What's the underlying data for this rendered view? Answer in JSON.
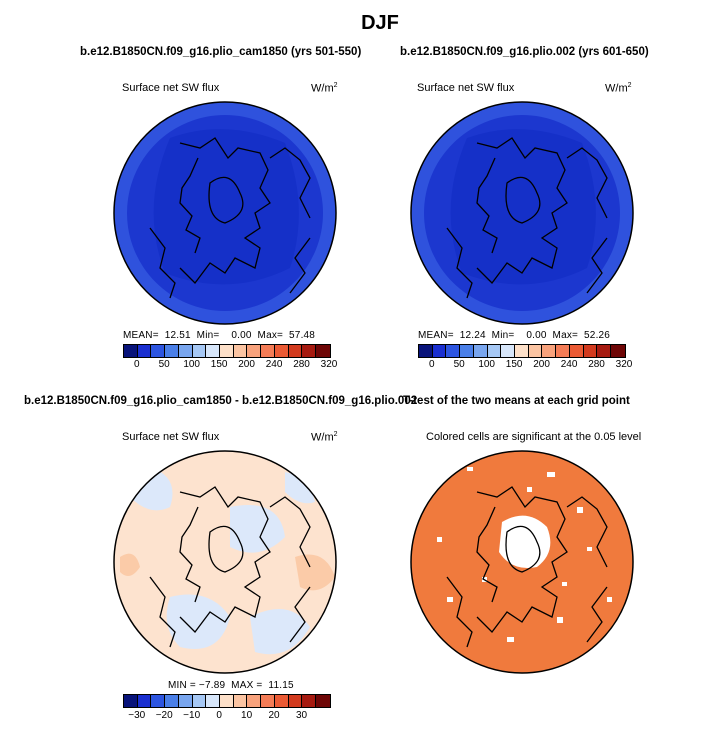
{
  "figure_title": "DJF",
  "panels": [
    {
      "title": "b.e12.B1850CN.f09_g16.plio_cam1850 (yrs 501-550)",
      "left_label": "Surface net SW flux",
      "units": "W/m",
      "units_exp": "2",
      "stats": "MEAN=  12.51  Min=    0.00  Max=  57.48",
      "colorbar": {
        "colors": [
          "#08137a",
          "#1a2fd0",
          "#2d55e0",
          "#4a7fe8",
          "#79a6ef",
          "#a6c8f5",
          "#d7e6fa",
          "#fde0c9",
          "#fbc4a2",
          "#f8a27c",
          "#f47c56",
          "#eb5a34",
          "#d23a1e",
          "#a61a10",
          "#6e0606"
        ],
        "tick_labels": [
          "0",
          "50",
          "100",
          "150",
          "200",
          "240",
          "280",
          "320"
        ]
      }
    },
    {
      "title": "b.e12.B1850CN.f09_g16.plio.002 (yrs 601-650)",
      "left_label": "Surface net SW flux",
      "units": "W/m",
      "units_exp": "2",
      "stats": "MEAN=  12.24  Min=    0.00  Max=  52.26",
      "colorbar": {
        "colors": [
          "#08137a",
          "#1a2fd0",
          "#2d55e0",
          "#4a7fe8",
          "#79a6ef",
          "#a6c8f5",
          "#d7e6fa",
          "#fde0c9",
          "#fbc4a2",
          "#f8a27c",
          "#f47c56",
          "#eb5a34",
          "#d23a1e",
          "#a61a10",
          "#6e0606"
        ],
        "tick_labels": [
          "0",
          "50",
          "100",
          "150",
          "200",
          "240",
          "280",
          "320"
        ]
      }
    },
    {
      "title": "b.e12.B1850CN.f09_g16.plio_cam1850 - b.e12.B1850CN.f09_g16.plio.002",
      "left_label": "Surface net SW flux",
      "units": "W/m",
      "units_exp": "2",
      "stats": "MIN = −7.89  MAX =  11.15",
      "colorbar": {
        "colors": [
          "#08137a",
          "#1a2fd0",
          "#2d55e0",
          "#4a7fe8",
          "#79a6ef",
          "#a6c8f5",
          "#d7e6fa",
          "#fde0c9",
          "#fbc4a2",
          "#f8a27c",
          "#f47c56",
          "#eb5a34",
          "#d23a1e",
          "#a61a10",
          "#6e0606"
        ],
        "tick_labels": [
          "−30",
          "−20",
          "−10",
          "0",
          "10",
          "20",
          "30"
        ]
      }
    },
    {
      "title": "T-test of the two means at each grid point",
      "subtitle": "Colored cells are significant at the 0.05 level"
    }
  ],
  "chart_data": [
    {
      "type": "heatmap",
      "projection": "north polar stereographic",
      "variable": "Surface net SW flux",
      "units": "W/m2",
      "mean": 12.51,
      "min": 0.0,
      "max": 57.48,
      "colorbar_ticks": [
        0,
        50,
        100,
        150,
        200,
        240,
        280,
        320
      ]
    },
    {
      "type": "heatmap",
      "projection": "north polar stereographic",
      "variable": "Surface net SW flux",
      "units": "W/m2",
      "mean": 12.24,
      "min": 0.0,
      "max": 52.26,
      "colorbar_ticks": [
        0,
        50,
        100,
        150,
        200,
        240,
        280,
        320
      ]
    },
    {
      "type": "heatmap",
      "projection": "north polar stereographic",
      "variable": "Surface net SW flux",
      "units": "W/m2",
      "min": -7.89,
      "max": 11.15,
      "colorbar_ticks": [
        -30,
        -20,
        -10,
        0,
        10,
        20,
        30
      ]
    },
    {
      "type": "heatmap",
      "projection": "north polar stereographic",
      "significance_level": 0.05,
      "significant_color": "#f07a3d"
    }
  ]
}
